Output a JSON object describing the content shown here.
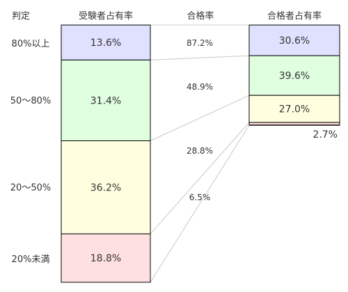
{
  "chart_data": {
    "type": "bar",
    "headers": {
      "judgement": "判定",
      "examinee_share": "受験者占有率",
      "pass_rate": "合格率",
      "passer_share": "合格者占有率"
    },
    "categories": [
      "80%以上",
      "50～80%",
      "20～50%",
      "20%未満"
    ],
    "series": [
      {
        "name": "受験者占有率",
        "values": [
          13.6,
          31.4,
          36.2,
          18.8
        ],
        "labels": [
          "13.6%",
          "31.4%",
          "36.2%",
          "18.8%"
        ]
      },
      {
        "name": "合格率",
        "values": [
          87.2,
          48.9,
          28.8,
          6.5
        ],
        "labels": [
          "87.2%",
          "48.9%",
          "28.8%",
          "6.5%"
        ]
      },
      {
        "name": "合格者占有率",
        "values": [
          30.6,
          39.6,
          27.0,
          2.7
        ],
        "labels": [
          "30.6%",
          "39.6%",
          "27.0%",
          "2.7%"
        ]
      }
    ],
    "colors": [
      "#e0e0ff",
      "#e0ffe0",
      "#ffffe0",
      "#ffe0e0"
    ],
    "stroke": "#000000",
    "connector_color": "#c8c8c8",
    "ylim": [
      0,
      100
    ],
    "legend": "none",
    "grid": false
  }
}
